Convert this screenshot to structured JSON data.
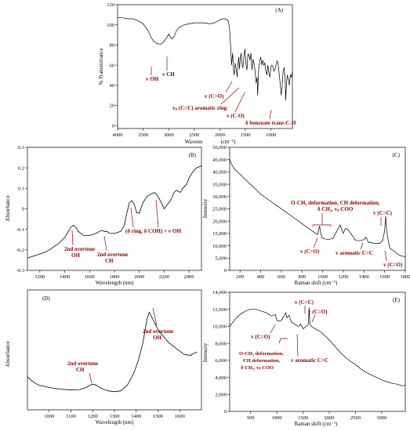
{
  "accent_color": "#8B0000",
  "chart_data": [
    {
      "panel": "(A)",
      "type": "line",
      "xlabel": "Wavenu",
      "xunit": "(cm⁻¹)",
      "ylabel": "% Transmittance",
      "xlim": [
        4000,
        580
      ],
      "ylim": [
        -3,
        120
      ],
      "xticks": [
        4000,
        3500,
        3000,
        2500,
        2000,
        1500,
        1000
      ],
      "yticks": [
        0,
        20,
        40,
        60,
        80,
        100,
        120
      ],
      "series": [
        {
          "x": [
            4000,
            3900,
            3800,
            3700,
            3600,
            3500,
            3400,
            3350,
            3300,
            3250,
            3200,
            3150,
            3100,
            3060,
            3030,
            3000,
            2970,
            2940,
            2900,
            2850,
            2800,
            2700,
            2600,
            2500,
            2400,
            2300,
            2200,
            2100,
            2000,
            1950,
            1900,
            1850,
            1830,
            1810,
            1790,
            1770,
            1750,
            1730,
            1720,
            1700,
            1680,
            1660,
            1650,
            1630,
            1615,
            1600,
            1585,
            1570,
            1550,
            1530,
            1510,
            1490,
            1470,
            1450,
            1430,
            1410,
            1390,
            1370,
            1350,
            1330,
            1310,
            1290,
            1270,
            1260,
            1250,
            1240,
            1220,
            1200,
            1180,
            1160,
            1140,
            1120,
            1100,
            1080,
            1060,
            1040,
            1020,
            1000,
            980,
            960,
            940,
            920,
            900,
            880,
            860,
            840,
            820,
            800,
            780,
            760,
            740,
            720,
            710,
            700,
            690,
            680,
            660,
            640,
            620,
            600,
            580
          ],
          "y": [
            107,
            107,
            106,
            106,
            104,
            101,
            94,
            88,
            84,
            82,
            81,
            81,
            83,
            86,
            88,
            91,
            88,
            86,
            88,
            94,
            97,
            100,
            101,
            102,
            102,
            102,
            101,
            102,
            105,
            106,
            106,
            105,
            103,
            96,
            80,
            60,
            72,
            55,
            50,
            62,
            56,
            48,
            58,
            68,
            56,
            66,
            72,
            64,
            57,
            68,
            76,
            62,
            55,
            71,
            70,
            65,
            72,
            55,
            66,
            62,
            54,
            42,
            48,
            30,
            42,
            56,
            64,
            68,
            60,
            65,
            60,
            62,
            54,
            50,
            60,
            52,
            48,
            58,
            60,
            58,
            54,
            56,
            60,
            64,
            62,
            52,
            42,
            30,
            40,
            54,
            58,
            42,
            25,
            38,
            45,
            50,
            46,
            40,
            50,
            48,
            54
          ]
        }
      ],
      "annotations": [
        "v OH",
        "v CH",
        "v (C=O)",
        "vₛ (C=C) aromatic ring",
        "v (C-O)",
        "δ benzoate trans-C-H"
      ]
    },
    {
      "panel": "(B)",
      "type": "line",
      "xlabel": "Wavelength (nm)",
      "ylabel": "Absorbance",
      "xlim": [
        1100,
        2500
      ],
      "ylim": [
        -0.3,
        0.3
      ],
      "xticks": [
        1200,
        1400,
        1600,
        1800,
        2000,
        2200,
        2400
      ],
      "yticks": [
        -0.3,
        -0.2,
        -0.1,
        0,
        0.1,
        0.2,
        0.3
      ],
      "series": [
        {
          "x": [
            1100,
            1150,
            1200,
            1250,
            1300,
            1350,
            1400,
            1430,
            1450,
            1470,
            1490,
            1510,
            1550,
            1600,
            1650,
            1680,
            1700,
            1720,
            1740,
            1760,
            1800,
            1850,
            1880,
            1900,
            1920,
            1940,
            1960,
            1980,
            2000,
            2030,
            2060,
            2090,
            2120,
            2140,
            2160,
            2200,
            2250,
            2280,
            2300,
            2330,
            2350,
            2380,
            2400,
            2430,
            2460,
            2500
          ],
          "y": [
            -0.24,
            -0.23,
            -0.22,
            -0.21,
            -0.19,
            -0.17,
            -0.14,
            -0.11,
            -0.09,
            -0.08,
            -0.09,
            -0.11,
            -0.13,
            -0.13,
            -0.12,
            -0.11,
            -0.105,
            -0.11,
            -0.11,
            -0.12,
            -0.12,
            -0.11,
            -0.08,
            -0.02,
            0.03,
            0.04,
            0.02,
            -0.02,
            -0.02,
            0.03,
            0.06,
            0.07,
            0.08,
            0.07,
            0.05,
            0.0,
            0.04,
            0.08,
            0.09,
            0.08,
            0.1,
            0.12,
            0.15,
            0.18,
            0.2,
            0.21
          ]
        }
      ],
      "annotations": [
        "2nd overtone OH",
        "2nd overtone CH",
        "(δ ring, δ COH) + v OH"
      ]
    },
    {
      "panel": "(C)",
      "type": "line",
      "xlabel": "Raman shift (cm⁻¹)",
      "ylabel": "Intensity",
      "xlim": [
        100,
        1800
      ],
      "ylim": [
        0,
        50000
      ],
      "xticks": [
        200,
        400,
        600,
        800,
        1000,
        1200,
        1400,
        1600,
        1800
      ],
      "yticks": [
        0,
        5000,
        10000,
        15000,
        20000,
        25000,
        30000,
        35000,
        40000,
        45000,
        50000
      ],
      "ytick_labels": [
        "0",
        "5,000",
        "10,000",
        "15,000",
        "20,000",
        "25,000",
        "30,000",
        "35,000",
        "40,000",
        "45,000",
        "50,000"
      ],
      "series": [
        {
          "x": [
            100,
            120,
            150,
            200,
            250,
            300,
            350,
            400,
            450,
            500,
            550,
            600,
            650,
            700,
            750,
            800,
            850,
            900,
            950,
            970,
            990,
            1010,
            1050,
            1100,
            1150,
            1170,
            1190,
            1200,
            1220,
            1250,
            1270,
            1290,
            1310,
            1350,
            1400,
            1420,
            1440,
            1500,
            1550,
            1580,
            1600,
            1610,
            1620,
            1635,
            1650,
            1700,
            1750,
            1800
          ],
          "y": [
            45000,
            43000,
            41000,
            39000,
            37000,
            35000,
            33000,
            31000,
            29500,
            28000,
            26500,
            25000,
            23500,
            22000,
            20500,
            19000,
            17500,
            16000,
            14500,
            18000,
            13500,
            13000,
            12500,
            13000,
            17000,
            18500,
            16000,
            15000,
            17000,
            16500,
            15000,
            14000,
            12500,
            12000,
            12500,
            13500,
            11500,
            11000,
            11000,
            12000,
            16000,
            22000,
            16000,
            12000,
            9000,
            7500,
            6000,
            5500
          ]
        }
      ],
      "annotations": [
        "O-CH₃ deformation, CH deformation, δ CH₂, vₛ COO",
        "v (C=C)",
        "v (C=O)",
        "v aromatic C=C",
        "v (C=O)"
      ]
    },
    {
      "panel": "(D)",
      "type": "line",
      "xlabel": "Wavelength (nm)",
      "ylabel": "Absorbance",
      "xlim": [
        900,
        1700
      ],
      "xticks": [
        1000,
        1100,
        1200,
        1300,
        1400,
        1500,
        1600
      ],
      "series": [
        {
          "x": [
            900,
            920,
            950,
            1000,
            1050,
            1100,
            1140,
            1170,
            1190,
            1200,
            1215,
            1240,
            1270,
            1300,
            1330,
            1360,
            1390,
            1410,
            1430,
            1450,
            1460,
            1470,
            1500,
            1550,
            1600,
            1620,
            1650,
            1670,
            1680
          ],
          "y": [
            0.15,
            0.1,
            0.05,
            0.02,
            0.0,
            -0.01,
            -0.005,
            0.02,
            0.05,
            0.06,
            0.05,
            0.01,
            -0.02,
            -0.03,
            -0.02,
            0.05,
            0.2,
            0.35,
            0.55,
            0.85,
            0.93,
            0.88,
            0.72,
            0.56,
            0.46,
            0.42,
            0.41,
            0.44,
            0.45
          ]
        }
      ],
      "annotations": [
        "2nd overtone OH",
        "2nd overtone CH"
      ]
    },
    {
      "panel": "(E)",
      "type": "line",
      "xlabel": "Raman shift (cm⁻¹)",
      "ylabel": "Intensity",
      "xlim": [
        100,
        3450
      ],
      "ylim": [
        0,
        14000
      ],
      "xticks": [
        500,
        1000,
        1500,
        2000,
        2500,
        3000
      ],
      "yticks": [
        0,
        2000,
        4000,
        6000,
        8000,
        10000,
        12000,
        14000
      ],
      "ytick_labels": [
        "0",
        "2,000",
        "4,000",
        "6,000",
        "8,000",
        "10,000",
        "12,000",
        "14,000"
      ],
      "series": [
        {
          "x": [
            100,
            200,
            300,
            400,
            500,
            600,
            700,
            800,
            900,
            970,
            1000,
            1050,
            1100,
            1170,
            1190,
            1230,
            1280,
            1350,
            1420,
            1450,
            1500,
            1560,
            1600,
            1615,
            1630,
            1660,
            1700,
            1800,
            1900,
            2000,
            2100,
            2200,
            2300,
            2400,
            2500,
            2600,
            2700,
            2800,
            2900,
            3000,
            3100,
            3200,
            3300,
            3400,
            3450
          ],
          "y": [
            10000,
            10800,
            11400,
            11800,
            12000,
            12000,
            11800,
            11600,
            11200,
            11400,
            10700,
            10600,
            10800,
            11600,
            11000,
            11300,
            10500,
            10200,
            10000,
            10300,
            9700,
            10000,
            10200,
            12200,
            10300,
            10000,
            9800,
            9500,
            9000,
            8400,
            7700,
            7000,
            6400,
            5900,
            5500,
            5000,
            4600,
            4300,
            4000,
            3700,
            3500,
            3300,
            3200,
            3000,
            3100
          ]
        }
      ],
      "annotations": [
        "v (C=C)",
        "v (C=O)",
        "v (C=O)",
        "O-CH₃ deformation, CH deformation, δ CH₂, vₛ COO",
        "v aromatic C=C"
      ]
    }
  ],
  "labels": {
    "A": {
      "panel": "(A)",
      "ylabel": "% Transmittance",
      "xlabel": "Wavenu",
      "xunit": "(cm⁻¹)",
      "ann": [
        "v OH",
        "v CH",
        "v (C=O)",
        "vₛ (C=C) aromatic ring",
        "v (C-O)",
        "δ benzoate trans-C-H"
      ]
    },
    "B": {
      "panel": "(B)",
      "ylabel": "Absorbance",
      "xlabel": "Wavelength (nm)",
      "ann1a": "2nd overtone",
      "ann1b": "OH",
      "ann2a": "2nd overtone",
      "ann2b": "CH",
      "ann3": "(δ ring, δ COH) + v OH"
    },
    "C": {
      "panel": "(C)",
      "ylabel": "Intensity",
      "xlabel": "Raman shift (cm⁻¹)",
      "ann1a": "O-CH₃ deformation, CH deformation,",
      "ann1b": "δ CH₂, vₛ COO",
      "ann2": "v (C=C)",
      "ann3": "v (C=O)",
      "ann4": "v aromatic C=C",
      "ann5": "v (C=O)"
    },
    "D": {
      "panel": "(D)",
      "ylabel": "Absorbance",
      "xlabel": "Wavelength (nm)",
      "ann1a": "2nd overtone",
      "ann1b": "OH",
      "ann2a": "2nd overtone",
      "ann2b": "CH"
    },
    "E": {
      "panel": "(E)",
      "ylabel": "Intensity",
      "xlabel": "Raman shift (cm⁻¹)",
      "ann1": "v (C=C)",
      "ann2": "v (C=O)",
      "ann3": "v (C=O)",
      "ann4a": "O-CH₃ deformation,",
      "ann4b": "CH deformation,",
      "ann4c": "δ CH₂, vₛ COO",
      "ann5": "v aromatic C=C"
    }
  }
}
